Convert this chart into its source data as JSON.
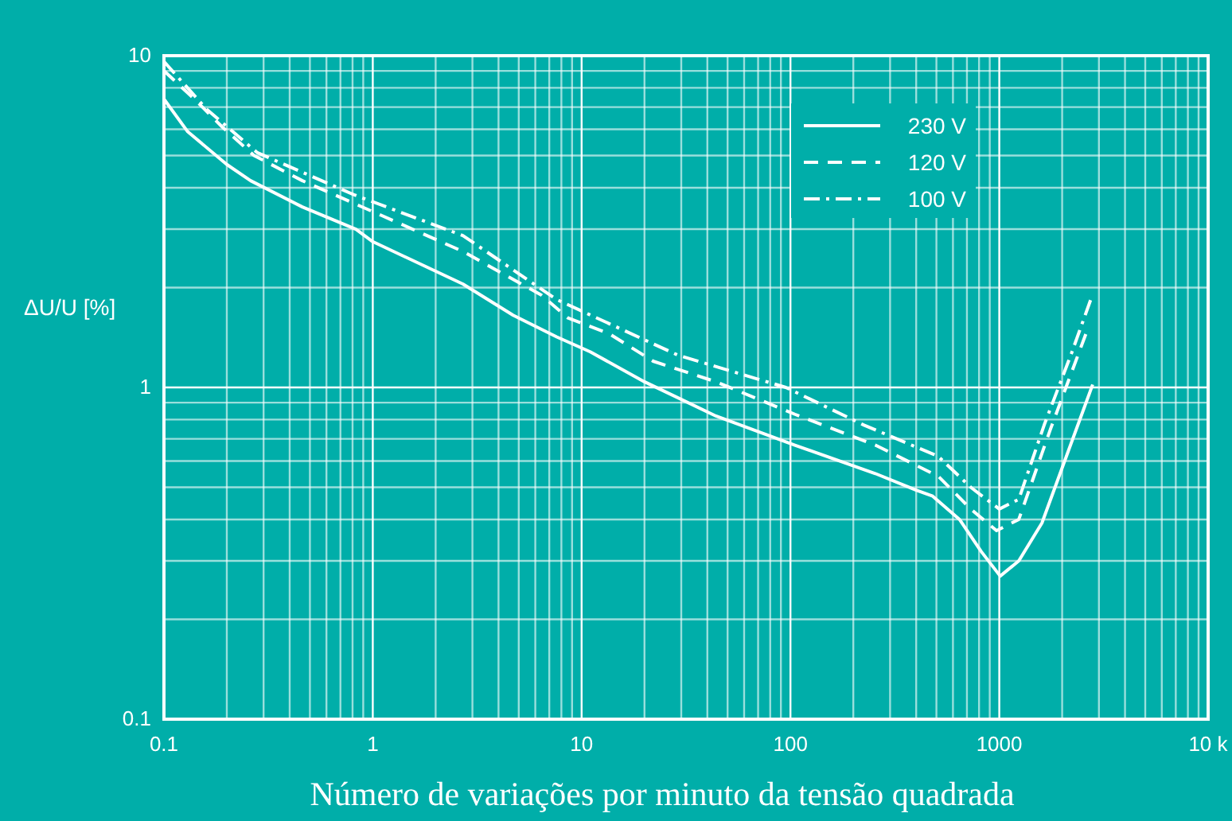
{
  "chart_data": {
    "type": "line",
    "xlabel": "Número de variações por minuto da tensão quadrada",
    "ylabel": "ΔU/U [%]",
    "log": "xy",
    "grid": true,
    "legend": "top right",
    "xlim": [
      0.1,
      10000
    ],
    "ylim": [
      0.1,
      10
    ],
    "xticks": [
      0.1,
      {
        "value": 0.2,
        "label": null
      },
      {
        "value": 0.3,
        "label": null
      },
      {
        "value": 0.4,
        "label": null
      },
      {
        "value": 0.5,
        "label": null
      },
      {
        "value": 0.6,
        "label": null
      },
      {
        "value": 0.7,
        "label": null
      },
      {
        "value": 0.8,
        "label": null
      },
      {
        "value": 0.9,
        "label": null
      },
      1,
      {
        "value": 2,
        "label": null
      },
      {
        "value": 3,
        "label": null
      },
      {
        "value": 4,
        "label": null
      },
      {
        "value": 5,
        "label": null
      },
      {
        "value": 6,
        "label": null
      },
      {
        "value": 7,
        "label": null
      },
      {
        "value": 8,
        "label": null
      },
      {
        "value": 9,
        "label": null
      },
      10,
      {
        "value": 20,
        "label": null
      },
      {
        "value": 30,
        "label": null
      },
      {
        "value": 40,
        "label": null
      },
      {
        "value": 50,
        "label": null
      },
      {
        "value": 60,
        "label": null
      },
      {
        "value": 70,
        "label": null
      },
      {
        "value": 80,
        "label": null
      },
      {
        "value": 90,
        "label": null
      },
      100,
      {
        "value": 200,
        "label": null
      },
      {
        "value": 300,
        "label": null
      },
      {
        "value": 400,
        "label": null
      },
      {
        "value": 500,
        "label": null
      },
      {
        "value": 600,
        "label": null
      },
      {
        "value": 700,
        "label": null
      },
      {
        "value": 800,
        "label": null
      },
      {
        "value": 900,
        "label": null
      },
      1000,
      {
        "value": 2000,
        "label": null
      },
      {
        "value": 3000,
        "label": null
      },
      {
        "value": 4000,
        "label": null
      },
      {
        "value": 5000,
        "label": null
      },
      {
        "value": 6000,
        "label": null
      },
      {
        "value": 7000,
        "label": null
      },
      {
        "value": 8000,
        "label": null
      },
      {
        "value": 9000,
        "label": null
      },
      {
        "value": 10000,
        "label": "10 k"
      }
    ],
    "yticks": [
      0.1,
      {
        "value": 0.2,
        "label": null
      },
      {
        "value": 0.3,
        "label": null
      },
      {
        "value": 0.4,
        "label": null
      },
      {
        "value": 0.5,
        "label": null
      },
      {
        "value": 0.6,
        "label": null
      },
      {
        "value": 0.7,
        "label": null
      },
      {
        "value": 0.8,
        "label": null
      },
      {
        "value": 0.9,
        "label": null
      },
      1,
      {
        "value": 2,
        "label": null
      },
      {
        "value": 3,
        "label": null
      },
      {
        "value": 4,
        "label": null
      },
      {
        "value": 5,
        "label": null
      },
      {
        "value": 6,
        "label": null
      },
      {
        "value": 7,
        "label": null
      },
      {
        "value": 8,
        "label": null
      },
      {
        "value": 9,
        "label": null
      },
      10
    ],
    "series": [
      {
        "name": "230 V",
        "color": "#ffffff",
        "line_style": "solid",
        "x": [
          0.1,
          0.13,
          0.2,
          0.26,
          0.46,
          0.83,
          1,
          2.7,
          4.7,
          7.6,
          11,
          20,
          44,
          105,
          255,
          400,
          480,
          645,
          820,
          1010,
          1240,
          1480,
          1600,
          2800
        ],
        "values": [
          7.4,
          5.9,
          4.7,
          4.2,
          3.5,
          3.0,
          2.75,
          2.05,
          1.65,
          1.42,
          1.28,
          1.04,
          0.82,
          0.67,
          0.55,
          0.49,
          0.47,
          0.4,
          0.32,
          0.27,
          0.3,
          0.36,
          0.39,
          1.02
        ]
      },
      {
        "name": "120 V",
        "color": "#ffffff",
        "line_style": "dashed",
        "x": [
          0.1,
          0.14,
          0.19,
          0.27,
          0.46,
          1.1,
          2.7,
          6.4,
          8.6,
          13.6,
          22,
          44,
          105,
          255,
          510,
          730,
          970,
          1240,
          1760,
          2650
        ],
        "values": [
          9.0,
          7.4,
          6.1,
          5.0,
          4.2,
          3.3,
          2.57,
          1.9,
          1.62,
          1.45,
          1.2,
          1.04,
          0.83,
          0.67,
          0.54,
          0.43,
          0.37,
          0.4,
          0.75,
          1.5
        ]
      },
      {
        "name": "100 V",
        "color": "#ffffff",
        "line_style": "dotted",
        "x": [
          0.1,
          0.16,
          0.28,
          0.82,
          2.7,
          7.6,
          29,
          95,
          225,
          510,
          730,
          1000,
          1240,
          1640,
          2220,
          2800
        ],
        "values": [
          9.6,
          6.9,
          5.1,
          3.8,
          2.87,
          1.84,
          1.25,
          1.0,
          0.77,
          0.62,
          0.5,
          0.43,
          0.46,
          0.77,
          1.27,
          1.91
        ]
      }
    ]
  }
}
